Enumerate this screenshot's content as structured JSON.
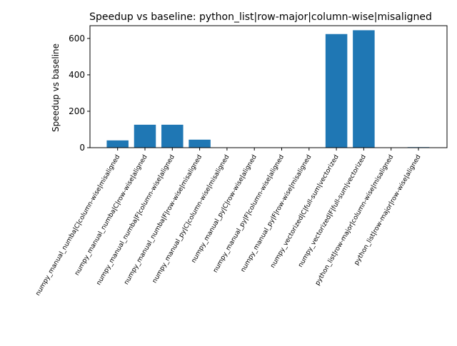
{
  "chart_data": {
    "type": "bar",
    "title": "Speedup vs baseline: python_list|row-major|column-wise|misaligned",
    "xlabel": "",
    "ylabel": "Speedup vs baseline",
    "ylim": [
      0,
      670
    ],
    "yticks": [
      0,
      200,
      400,
      600
    ],
    "grid": false,
    "bar_color": "#1f77b4",
    "categories": [
      "numpy_manual_numba|C|column-wise|misaligned",
      "numpy_manual_numba|C|row-wise|aligned",
      "numpy_manual_numba|F|column-wise|aligned",
      "numpy_manual_numba|F|row-wise|misaligned",
      "numpy_manual_py|C|column-wise|misaligned",
      "numpy_manual_py|C|row-wise|aligned",
      "numpy_manual_py|F|column-wise|aligned",
      "numpy_manual_py|F|row-wise|misaligned",
      "numpy_vectorized|C|full-sum|vectorized",
      "numpy_vectorized|F|full-sum|vectorized",
      "python_list|row-major|column-wise|misaligned",
      "python_list|row-major|row-wise|aligned"
    ],
    "values": [
      40,
      126,
      126,
      44,
      0.7,
      0.7,
      0.7,
      0.7,
      624,
      645,
      1,
      3
    ]
  }
}
